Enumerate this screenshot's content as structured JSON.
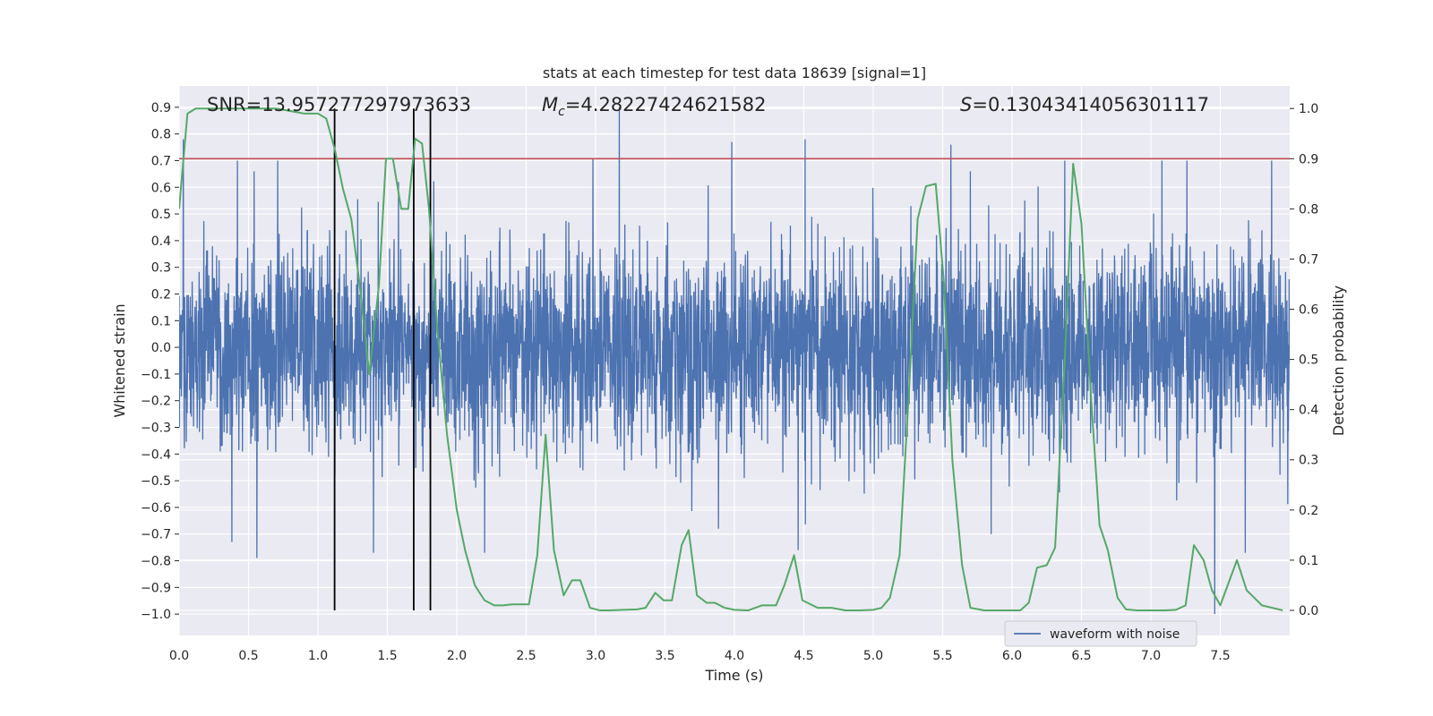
{
  "chart_data": {
    "type": "line",
    "title": "stats at each timestep for test data 18639 [signal=1]",
    "xlabel": "Time (s)",
    "ylabel_left": "Whitened strain",
    "ylabel_right": "Detection probability",
    "xlim": [
      0.0,
      8.0
    ],
    "ylim_left": [
      -1.08,
      0.98
    ],
    "ylim_right": [
      -0.05,
      1.045
    ],
    "x_ticks": [
      "0.0",
      "0.5",
      "1.0",
      "1.5",
      "2.0",
      "2.5",
      "3.0",
      "3.5",
      "4.0",
      "4.5",
      "5.0",
      "5.5",
      "6.0",
      "6.5",
      "7.0",
      "7.5"
    ],
    "y_left_ticks": [
      "0.9",
      "0.8",
      "0.7",
      "0.6",
      "0.5",
      "0.4",
      "0.3",
      "0.2",
      "0.1",
      "0.0",
      "-0.1",
      "-0.2",
      "-0.3",
      "-0.4",
      "-0.5",
      "-0.6",
      "-0.7",
      "-0.8",
      "-0.9",
      "-1.0"
    ],
    "y_right_ticks": [
      "1.0",
      "0.9",
      "0.8",
      "0.7",
      "0.6",
      "0.5",
      "0.4",
      "0.3",
      "0.2",
      "0.1",
      "0.0"
    ],
    "grid": true,
    "annotations": {
      "snr": "SNR=13.957277297973633",
      "mc_symbol": "M",
      "mc_subscript": "c",
      "mc_value": "=4.28227424621582",
      "s_symbol": "S",
      "s_value": "=0.13043414056301117"
    },
    "threshold": {
      "axis": "right",
      "value": 0.9,
      "color": "#c44e52"
    },
    "vertical_markers": [
      1.12,
      1.69,
      1.81
    ],
    "legend": {
      "position": "lower-right",
      "entries": [
        {
          "label": "waveform with noise",
          "color": "#4c72b0"
        }
      ]
    },
    "series": [
      {
        "name": "waveform with noise",
        "axis": "left",
        "color": "#4c72b0",
        "kind": "noise",
        "duration": 8.0,
        "sample_count": 4000,
        "typical_amplitude": 0.3,
        "notable_peaks": [
          {
            "x": 0.03,
            "y": 0.78
          },
          {
            "x": 0.42,
            "y": 0.7
          },
          {
            "x": 0.54,
            "y": 0.66
          },
          {
            "x": 0.71,
            "y": 0.7
          },
          {
            "x": 1.58,
            "y": 0.62
          },
          {
            "x": 2.98,
            "y": 0.71
          },
          {
            "x": 3.17,
            "y": 0.9
          },
          {
            "x": 3.98,
            "y": 0.77
          },
          {
            "x": 4.51,
            "y": 0.78
          },
          {
            "x": 5.56,
            "y": 0.76
          },
          {
            "x": 6.38,
            "y": 0.7
          },
          {
            "x": 7.08,
            "y": 0.7
          },
          {
            "x": 7.26,
            "y": 0.7
          },
          {
            "x": 7.87,
            "y": 0.7
          }
        ],
        "notable_troughs": [
          {
            "x": 0.38,
            "y": -0.73
          },
          {
            "x": 0.56,
            "y": -0.79
          },
          {
            "x": 1.4,
            "y": -0.77
          },
          {
            "x": 2.2,
            "y": -0.77
          },
          {
            "x": 4.46,
            "y": -0.76
          },
          {
            "x": 5.85,
            "y": -0.7
          },
          {
            "x": 7.46,
            "y": -1.0
          },
          {
            "x": 7.68,
            "y": -0.77
          }
        ]
      },
      {
        "name": "",
        "axis": "right",
        "color": "#55a868",
        "x": [
          0.0,
          0.06,
          0.12,
          0.18,
          0.3,
          0.5,
          0.7,
          0.8,
          0.9,
          1.0,
          1.06,
          1.12,
          1.18,
          1.24,
          1.3,
          1.37,
          1.44,
          1.49,
          1.54,
          1.6,
          1.65,
          1.7,
          1.75,
          1.8,
          1.86,
          1.93,
          2.0,
          2.06,
          2.13,
          2.2,
          2.27,
          2.33,
          2.4,
          2.46,
          2.52,
          2.58,
          2.64,
          2.7,
          2.77,
          2.83,
          2.89,
          2.96,
          3.03,
          3.1,
          3.2,
          3.3,
          3.36,
          3.43,
          3.49,
          3.55,
          3.62,
          3.67,
          3.73,
          3.8,
          3.86,
          3.93,
          4.0,
          4.1,
          4.2,
          4.3,
          4.36,
          4.43,
          4.49,
          4.6,
          4.7,
          4.8,
          4.9,
          5.0,
          5.06,
          5.12,
          5.19,
          5.26,
          5.32,
          5.38,
          5.45,
          5.51,
          5.57,
          5.64,
          5.7,
          5.8,
          5.9,
          6.0,
          6.06,
          6.12,
          6.18,
          6.25,
          6.31,
          6.38,
          6.44,
          6.5,
          6.57,
          6.63,
          6.69,
          6.76,
          6.82,
          6.9,
          7.0,
          7.1,
          7.18,
          7.25,
          7.31,
          7.38,
          7.44,
          7.5,
          7.56,
          7.62,
          7.69,
          7.8,
          7.95
        ],
        "y": [
          0.8,
          0.99,
          1.0,
          1.0,
          1.0,
          1.0,
          1.0,
          0.995,
          0.99,
          0.99,
          0.98,
          0.92,
          0.84,
          0.78,
          0.65,
          0.47,
          0.65,
          0.9,
          0.9,
          0.8,
          0.8,
          0.94,
          0.93,
          0.8,
          0.56,
          0.35,
          0.2,
          0.12,
          0.05,
          0.02,
          0.01,
          0.01,
          0.012,
          0.012,
          0.012,
          0.11,
          0.35,
          0.12,
          0.03,
          0.06,
          0.06,
          0.005,
          0.0,
          0.0,
          0.001,
          0.002,
          0.005,
          0.035,
          0.02,
          0.02,
          0.13,
          0.16,
          0.03,
          0.015,
          0.015,
          0.005,
          0.001,
          0.0,
          0.01,
          0.01,
          0.05,
          0.11,
          0.02,
          0.005,
          0.005,
          0.0,
          0.0,
          0.001,
          0.005,
          0.025,
          0.11,
          0.45,
          0.78,
          0.845,
          0.85,
          0.65,
          0.3,
          0.09,
          0.005,
          0.0,
          0.0,
          0.0,
          0.0,
          0.015,
          0.085,
          0.09,
          0.125,
          0.5,
          0.89,
          0.77,
          0.42,
          0.17,
          0.12,
          0.025,
          0.002,
          0.0,
          0.0,
          0.0,
          0.001,
          0.01,
          0.13,
          0.1,
          0.04,
          0.01,
          0.055,
          0.1,
          0.04,
          0.01,
          0.0
        ]
      }
    ]
  }
}
